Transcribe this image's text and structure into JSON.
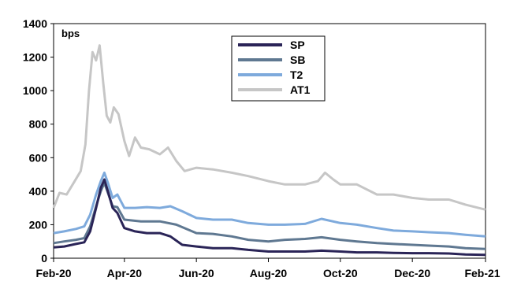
{
  "chart_data": {
    "type": "line",
    "unit_label": "bps",
    "y_ticks": [
      0,
      200,
      400,
      600,
      800,
      1000,
      1200,
      1400
    ],
    "ylim": [
      0,
      1400
    ],
    "x_tick_labels": [
      "Feb-20",
      "Apr-20",
      "Jun-20",
      "Aug-20",
      "Oct-20",
      "Dec-20",
      "Feb-21"
    ],
    "x_tick_dates": [
      "2020-02-01",
      "2020-04-01",
      "2020-06-01",
      "2020-08-01",
      "2020-10-01",
      "2020-12-01",
      "2021-02-01"
    ],
    "xlim": [
      "2020-02-01",
      "2021-02-01"
    ],
    "legend_position": "top-center",
    "grid": false,
    "series": [
      {
        "name": "SP",
        "color": "#2a2457",
        "points": [
          [
            "2020-02-01",
            65
          ],
          [
            "2020-02-10",
            70
          ],
          [
            "2020-02-20",
            85
          ],
          [
            "2020-02-27",
            95
          ],
          [
            "2020-03-03",
            160
          ],
          [
            "2020-03-08",
            300
          ],
          [
            "2020-03-12",
            420
          ],
          [
            "2020-03-15",
            470
          ],
          [
            "2020-03-18",
            400
          ],
          [
            "2020-03-22",
            300
          ],
          [
            "2020-03-26",
            270
          ],
          [
            "2020-04-01",
            180
          ],
          [
            "2020-04-10",
            160
          ],
          [
            "2020-04-20",
            150
          ],
          [
            "2020-05-01",
            150
          ],
          [
            "2020-05-10",
            130
          ],
          [
            "2020-05-20",
            80
          ],
          [
            "2020-06-01",
            70
          ],
          [
            "2020-06-15",
            60
          ],
          [
            "2020-07-01",
            60
          ],
          [
            "2020-07-15",
            50
          ],
          [
            "2020-08-01",
            40
          ],
          [
            "2020-08-15",
            40
          ],
          [
            "2020-09-01",
            40
          ],
          [
            "2020-09-15",
            45
          ],
          [
            "2020-10-01",
            40
          ],
          [
            "2020-10-15",
            35
          ],
          [
            "2020-11-01",
            35
          ],
          [
            "2020-11-15",
            32
          ],
          [
            "2020-12-01",
            30
          ],
          [
            "2020-12-15",
            30
          ],
          [
            "2021-01-01",
            28
          ],
          [
            "2021-01-15",
            22
          ],
          [
            "2021-02-01",
            20
          ]
        ]
      },
      {
        "name": "SB",
        "color": "#5f7891",
        "points": [
          [
            "2020-02-01",
            90
          ],
          [
            "2020-02-10",
            100
          ],
          [
            "2020-02-20",
            110
          ],
          [
            "2020-02-27",
            120
          ],
          [
            "2020-03-03",
            190
          ],
          [
            "2020-03-08",
            310
          ],
          [
            "2020-03-12",
            400
          ],
          [
            "2020-03-15",
            450
          ],
          [
            "2020-03-18",
            390
          ],
          [
            "2020-03-22",
            310
          ],
          [
            "2020-03-26",
            305
          ],
          [
            "2020-04-01",
            230
          ],
          [
            "2020-04-15",
            220
          ],
          [
            "2020-05-01",
            220
          ],
          [
            "2020-05-15",
            200
          ],
          [
            "2020-06-01",
            150
          ],
          [
            "2020-06-15",
            145
          ],
          [
            "2020-07-01",
            130
          ],
          [
            "2020-07-15",
            110
          ],
          [
            "2020-08-01",
            100
          ],
          [
            "2020-08-15",
            110
          ],
          [
            "2020-09-01",
            115
          ],
          [
            "2020-09-15",
            125
          ],
          [
            "2020-10-01",
            110
          ],
          [
            "2020-10-15",
            100
          ],
          [
            "2020-11-01",
            90
          ],
          [
            "2020-11-15",
            85
          ],
          [
            "2020-12-01",
            80
          ],
          [
            "2020-12-15",
            75
          ],
          [
            "2021-01-01",
            70
          ],
          [
            "2021-01-15",
            60
          ],
          [
            "2021-02-01",
            55
          ]
        ]
      },
      {
        "name": "T2",
        "color": "#7eaadc",
        "points": [
          [
            "2020-02-01",
            150
          ],
          [
            "2020-02-10",
            160
          ],
          [
            "2020-02-20",
            175
          ],
          [
            "2020-02-27",
            190
          ],
          [
            "2020-03-03",
            260
          ],
          [
            "2020-03-08",
            380
          ],
          [
            "2020-03-12",
            460
          ],
          [
            "2020-03-15",
            510
          ],
          [
            "2020-03-18",
            450
          ],
          [
            "2020-03-22",
            360
          ],
          [
            "2020-03-26",
            380
          ],
          [
            "2020-04-01",
            300
          ],
          [
            "2020-04-10",
            300
          ],
          [
            "2020-04-20",
            305
          ],
          [
            "2020-05-01",
            300
          ],
          [
            "2020-05-10",
            310
          ],
          [
            "2020-05-20",
            280
          ],
          [
            "2020-06-01",
            240
          ],
          [
            "2020-06-15",
            230
          ],
          [
            "2020-07-01",
            230
          ],
          [
            "2020-07-15",
            210
          ],
          [
            "2020-08-01",
            200
          ],
          [
            "2020-08-15",
            200
          ],
          [
            "2020-09-01",
            205
          ],
          [
            "2020-09-15",
            235
          ],
          [
            "2020-10-01",
            210
          ],
          [
            "2020-10-15",
            200
          ],
          [
            "2020-11-01",
            180
          ],
          [
            "2020-11-15",
            165
          ],
          [
            "2020-12-01",
            160
          ],
          [
            "2020-12-15",
            155
          ],
          [
            "2021-01-01",
            150
          ],
          [
            "2021-01-15",
            140
          ],
          [
            "2021-02-01",
            130
          ]
        ]
      },
      {
        "name": "AT1",
        "color": "#c6c6c6",
        "points": [
          [
            "2020-02-01",
            300
          ],
          [
            "2020-02-06",
            390
          ],
          [
            "2020-02-12",
            380
          ],
          [
            "2020-02-18",
            450
          ],
          [
            "2020-02-24",
            520
          ],
          [
            "2020-02-28",
            680
          ],
          [
            "2020-03-02",
            1000
          ],
          [
            "2020-03-05",
            1230
          ],
          [
            "2020-03-08",
            1180
          ],
          [
            "2020-03-11",
            1270
          ],
          [
            "2020-03-14",
            1050
          ],
          [
            "2020-03-17",
            850
          ],
          [
            "2020-03-20",
            810
          ],
          [
            "2020-03-23",
            900
          ],
          [
            "2020-03-27",
            860
          ],
          [
            "2020-04-01",
            700
          ],
          [
            "2020-04-05",
            610
          ],
          [
            "2020-04-10",
            720
          ],
          [
            "2020-04-15",
            660
          ],
          [
            "2020-04-22",
            650
          ],
          [
            "2020-05-01",
            620
          ],
          [
            "2020-05-08",
            660
          ],
          [
            "2020-05-15",
            580
          ],
          [
            "2020-05-22",
            520
          ],
          [
            "2020-06-01",
            540
          ],
          [
            "2020-06-15",
            530
          ],
          [
            "2020-07-01",
            510
          ],
          [
            "2020-07-15",
            490
          ],
          [
            "2020-08-01",
            460
          ],
          [
            "2020-08-15",
            440
          ],
          [
            "2020-09-01",
            440
          ],
          [
            "2020-09-12",
            460
          ],
          [
            "2020-09-18",
            510
          ],
          [
            "2020-09-25",
            470
          ],
          [
            "2020-10-01",
            440
          ],
          [
            "2020-10-15",
            440
          ],
          [
            "2020-11-01",
            380
          ],
          [
            "2020-11-15",
            380
          ],
          [
            "2020-12-01",
            360
          ],
          [
            "2020-12-15",
            350
          ],
          [
            "2021-01-01",
            350
          ],
          [
            "2021-01-15",
            320
          ],
          [
            "2021-02-01",
            290
          ]
        ]
      }
    ]
  }
}
